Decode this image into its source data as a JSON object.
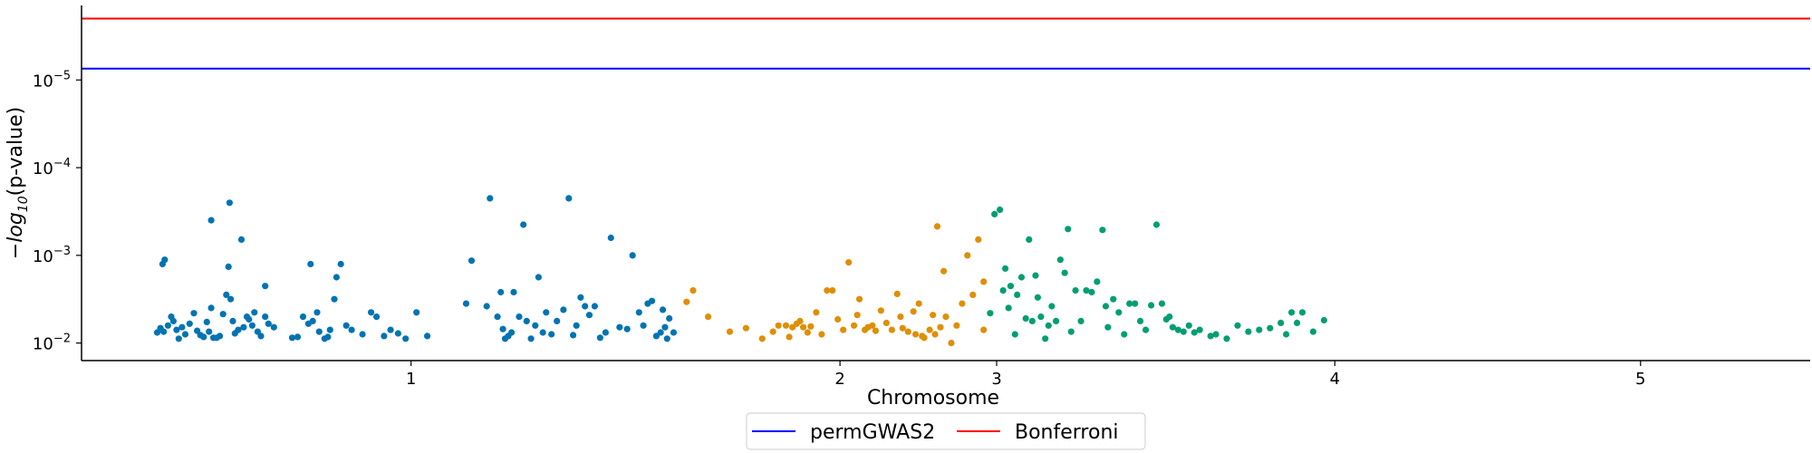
{
  "chart_data": {
    "type": "scatter",
    "xlabel": "Chromosome",
    "ylabel_parts": {
      "pre": "−log",
      "sub": "10",
      "post": "(p-value)"
    },
    "x_ticks": [
      {
        "label": "1",
        "pos": 0.305
      },
      {
        "label": "2",
        "pos": 0.702
      },
      {
        "label": "3",
        "pos": 0.847
      },
      {
        "label": "4",
        "pos": 1.16
      },
      {
        "label": "5",
        "pos": 1.443
      }
    ],
    "y_ticks": [
      {
        "exp": "-5",
        "value": 5
      },
      {
        "exp": "-4",
        "value": 4
      },
      {
        "exp": "-3",
        "value": 3
      },
      {
        "exp": "-2",
        "value": 2
      }
    ],
    "y_tick_base": "10",
    "xlim": [
      0.0,
      1.6
    ],
    "ylim": [
      1.8,
      5.85
    ],
    "thresholds": [
      {
        "name": "permGWAS2",
        "value": 5.13,
        "color": "#0000ff"
      },
      {
        "name": "Bonferroni",
        "value": 5.7,
        "color": "#ff0000"
      }
    ],
    "legend": {
      "placement": "bottom-center",
      "entries": [
        "permGWAS2",
        "Bonferroni"
      ]
    },
    "series": [
      {
        "color": "#0173b2",
        "points": [
          [
            0.07,
            2.12
          ],
          [
            0.073,
            2.17
          ],
          [
            0.076,
            2.13
          ],
          [
            0.08,
            2.2
          ],
          [
            0.083,
            2.3
          ],
          [
            0.085,
            2.25
          ],
          [
            0.088,
            2.15
          ],
          [
            0.09,
            2.05
          ],
          [
            0.093,
            2.18
          ],
          [
            0.096,
            2.1
          ],
          [
            0.1,
            2.22
          ],
          [
            0.104,
            2.34
          ],
          [
            0.107,
            2.14
          ],
          [
            0.11,
            2.09
          ],
          [
            0.113,
            2.07
          ],
          [
            0.116,
            2.24
          ],
          [
            0.118,
            2.13
          ],
          [
            0.12,
            2.4
          ],
          [
            0.122,
            2.06
          ],
          [
            0.125,
            2.06
          ],
          [
            0.128,
            2.08
          ],
          [
            0.131,
            2.33
          ],
          [
            0.134,
            2.55
          ],
          [
            0.136,
            2.87
          ],
          [
            0.138,
            2.5
          ],
          [
            0.14,
            2.25
          ],
          [
            0.142,
            2.11
          ],
          [
            0.145,
            2.15
          ],
          [
            0.148,
            3.18
          ],
          [
            0.15,
            2.18
          ],
          [
            0.153,
            2.3
          ],
          [
            0.155,
            2.27
          ],
          [
            0.158,
            2.2
          ],
          [
            0.16,
            2.35
          ],
          [
            0.163,
            2.13
          ],
          [
            0.166,
            2.08
          ],
          [
            0.17,
            2.3
          ],
          [
            0.173,
            2.22
          ],
          [
            0.178,
            2.18
          ],
          [
            0.17,
            2.65
          ],
          [
            0.075,
            2.9
          ],
          [
            0.077,
            2.95
          ],
          [
            0.12,
            3.4
          ],
          [
            0.137,
            3.6
          ],
          [
            0.195,
            2.06
          ],
          [
            0.2,
            2.07
          ],
          [
            0.205,
            2.3
          ],
          [
            0.21,
            2.22
          ],
          [
            0.212,
            2.9
          ],
          [
            0.214,
            2.25
          ],
          [
            0.218,
            2.35
          ],
          [
            0.22,
            2.13
          ],
          [
            0.225,
            2.05
          ],
          [
            0.228,
            2.07
          ],
          [
            0.23,
            2.15
          ],
          [
            0.234,
            2.5
          ],
          [
            0.236,
            2.75
          ],
          [
            0.24,
            2.9
          ],
          [
            0.245,
            2.2
          ],
          [
            0.25,
            2.15
          ],
          [
            0.26,
            2.1
          ],
          [
            0.268,
            2.35
          ],
          [
            0.273,
            2.3
          ],
          [
            0.28,
            2.08
          ],
          [
            0.286,
            2.15
          ],
          [
            0.293,
            2.11
          ],
          [
            0.3,
            2.05
          ],
          [
            0.31,
            2.35
          ],
          [
            0.32,
            2.08
          ],
          [
            0.356,
            2.45
          ],
          [
            0.361,
            2.94
          ],
          [
            0.375,
            2.42
          ],
          [
            0.378,
            3.65
          ],
          [
            0.385,
            2.3
          ],
          [
            0.388,
            2.58
          ],
          [
            0.39,
            2.16
          ],
          [
            0.392,
            2.05
          ],
          [
            0.395,
            2.08
          ],
          [
            0.398,
            2.12
          ],
          [
            0.4,
            2.58
          ],
          [
            0.405,
            2.3
          ],
          [
            0.409,
            3.35
          ],
          [
            0.412,
            2.25
          ],
          [
            0.416,
            2.05
          ],
          [
            0.42,
            2.2
          ],
          [
            0.423,
            2.75
          ],
          [
            0.427,
            2.12
          ],
          [
            0.43,
            2.35
          ],
          [
            0.435,
            2.1
          ],
          [
            0.44,
            2.25
          ],
          [
            0.446,
            2.38
          ],
          [
            0.451,
            3.65
          ],
          [
            0.455,
            2.09
          ],
          [
            0.458,
            2.2
          ],
          [
            0.462,
            2.52
          ],
          [
            0.466,
            2.42
          ],
          [
            0.47,
            2.32
          ],
          [
            0.475,
            2.42
          ],
          [
            0.48,
            2.06
          ],
          [
            0.485,
            2.12
          ],
          [
            0.49,
            3.2
          ],
          [
            0.498,
            2.18
          ],
          [
            0.505,
            2.16
          ],
          [
            0.51,
            3.0
          ],
          [
            0.516,
            2.35
          ],
          [
            0.52,
            2.2
          ],
          [
            0.524,
            2.45
          ],
          [
            0.528,
            2.48
          ],
          [
            0.532,
            2.08
          ],
          [
            0.536,
            2.12
          ],
          [
            0.538,
            2.38
          ],
          [
            0.54,
            2.18
          ],
          [
            0.542,
            2.05
          ],
          [
            0.544,
            2.28
          ],
          [
            0.548,
            2.12
          ]
        ]
      },
      {
        "color": "#de8f05",
        "points": [
          [
            0.56,
            2.47
          ],
          [
            0.566,
            2.6
          ],
          [
            0.58,
            2.3
          ],
          [
            0.6,
            2.13
          ],
          [
            0.615,
            2.17
          ],
          [
            0.63,
            2.05
          ],
          [
            0.64,
            2.13
          ],
          [
            0.645,
            2.2
          ],
          [
            0.652,
            2.2
          ],
          [
            0.655,
            2.07
          ],
          [
            0.658,
            2.18
          ],
          [
            0.662,
            2.22
          ],
          [
            0.665,
            2.25
          ],
          [
            0.668,
            2.18
          ],
          [
            0.672,
            2.12
          ],
          [
            0.675,
            2.19
          ],
          [
            0.68,
            2.35
          ],
          [
            0.685,
            2.1
          ],
          [
            0.69,
            2.6
          ],
          [
            0.695,
            2.6
          ],
          [
            0.7,
            2.27
          ],
          [
            0.705,
            2.15
          ],
          [
            0.71,
            2.92
          ],
          [
            0.715,
            2.2
          ],
          [
            0.718,
            2.32
          ],
          [
            0.72,
            2.5
          ],
          [
            0.725,
            2.15
          ],
          [
            0.728,
            2.18
          ],
          [
            0.732,
            2.2
          ],
          [
            0.735,
            2.14
          ],
          [
            0.74,
            2.37
          ],
          [
            0.745,
            2.23
          ],
          [
            0.75,
            2.15
          ],
          [
            0.755,
            2.56
          ],
          [
            0.758,
            2.3
          ],
          [
            0.76,
            2.17
          ],
          [
            0.765,
            2.13
          ],
          [
            0.77,
            2.36
          ],
          [
            0.772,
            2.1
          ],
          [
            0.775,
            2.45
          ],
          [
            0.778,
            2.08
          ],
          [
            0.78,
            2.06
          ],
          [
            0.785,
            2.15
          ],
          [
            0.788,
            2.32
          ],
          [
            0.79,
            2.1
          ],
          [
            0.792,
            3.33
          ],
          [
            0.795,
            2.18
          ],
          [
            0.798,
            2.82
          ],
          [
            0.8,
            2.3
          ],
          [
            0.805,
            2.0
          ],
          [
            0.81,
            2.2
          ],
          [
            0.815,
            2.45
          ],
          [
            0.82,
            3.0
          ],
          [
            0.825,
            2.55
          ],
          [
            0.83,
            3.18
          ],
          [
            0.835,
            2.15
          ],
          [
            0.835,
            2.7
          ]
        ]
      },
      {
        "color": "#029e73",
        "points": [
          [
            0.841,
            2.34
          ],
          [
            0.845,
            3.47
          ],
          [
            0.85,
            3.52
          ],
          [
            0.853,
            2.6
          ],
          [
            0.855,
            2.85
          ],
          [
            0.858,
            2.4
          ],
          [
            0.86,
            2.65
          ],
          [
            0.864,
            2.1
          ],
          [
            0.866,
            2.55
          ],
          [
            0.87,
            2.75
          ],
          [
            0.874,
            2.28
          ],
          [
            0.877,
            3.18
          ],
          [
            0.88,
            2.25
          ],
          [
            0.883,
            2.77
          ],
          [
            0.885,
            2.52
          ],
          [
            0.888,
            2.3
          ],
          [
            0.892,
            2.05
          ],
          [
            0.895,
            2.2
          ],
          [
            0.898,
            2.42
          ],
          [
            0.902,
            2.25
          ],
          [
            0.906,
            2.95
          ],
          [
            0.91,
            2.8
          ],
          [
            0.913,
            3.3
          ],
          [
            0.916,
            2.13
          ],
          [
            0.92,
            2.6
          ],
          [
            0.925,
            2.25
          ],
          [
            0.93,
            2.6
          ],
          [
            0.935,
            2.58
          ],
          [
            0.94,
            2.7
          ],
          [
            0.945,
            3.29
          ],
          [
            0.948,
            2.42
          ],
          [
            0.95,
            2.18
          ],
          [
            0.955,
            2.5
          ],
          [
            0.96,
            2.35
          ],
          [
            0.965,
            2.1
          ],
          [
            0.97,
            2.45
          ],
          [
            0.975,
            2.45
          ],
          [
            0.98,
            2.25
          ],
          [
            0.985,
            2.15
          ],
          [
            0.99,
            2.43
          ],
          [
            0.995,
            3.35
          ],
          [
            1.0,
            2.45
          ],
          [
            1.004,
            2.27
          ],
          [
            1.007,
            2.3
          ],
          [
            1.01,
            2.18
          ],
          [
            1.015,
            2.15
          ],
          [
            1.02,
            2.13
          ],
          [
            1.025,
            2.2
          ],
          [
            1.03,
            2.12
          ],
          [
            1.035,
            2.15
          ],
          [
            1.045,
            2.08
          ],
          [
            1.05,
            2.1
          ],
          [
            1.06,
            2.05
          ],
          [
            1.07,
            2.2
          ],
          [
            1.08,
            2.13
          ],
          [
            1.09,
            2.15
          ],
          [
            1.1,
            2.17
          ],
          [
            1.11,
            2.23
          ],
          [
            1.115,
            2.1
          ],
          [
            1.12,
            2.35
          ],
          [
            1.125,
            2.23
          ],
          [
            1.13,
            2.35
          ],
          [
            1.14,
            2.13
          ],
          [
            1.15,
            2.26
          ]
        ]
      }
    ]
  }
}
